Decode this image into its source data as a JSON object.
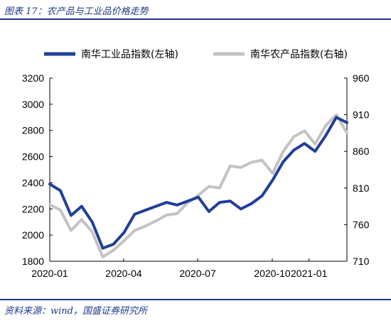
{
  "header": {
    "title": "图表 17：农产品与工业品价格走势"
  },
  "footer": {
    "source": "资料来源：wind，国盛证券研究所"
  },
  "colors": {
    "industrial": "#1f3f99",
    "agricultural": "#c3c3c3",
    "accent": "#1d3a8a"
  },
  "chart_data": {
    "type": "line",
    "title": "",
    "xlabel": "",
    "ylabel": "",
    "legend_position": "top",
    "grid": false,
    "x_ticks": [
      "2020-01",
      "2020-04",
      "2020-07",
      "2020-10",
      "2021-01"
    ],
    "ylim_left": [
      1800,
      3200
    ],
    "ylim_right": [
      710,
      960
    ],
    "y_ticks_left": [
      "1800",
      "2000",
      "2200",
      "2400",
      "2600",
      "2800",
      "3000",
      "3200"
    ],
    "y_ticks_right": [
      "710",
      "760",
      "810",
      "860",
      "910",
      "960"
    ],
    "x": [
      "2020-01",
      "2020-01",
      "2020-02",
      "2020-02",
      "2020-03",
      "2020-03",
      "2020-04",
      "2020-04",
      "2020-05",
      "2020-05",
      "2020-06",
      "2020-06",
      "2020-07",
      "2020-07",
      "2020-08",
      "2020-08",
      "2020-09",
      "2020-09",
      "2020-10",
      "2020-10",
      "2020-11",
      "2020-11",
      "2020-12",
      "2020-12",
      "2021-01",
      "2021-01",
      "2021-02",
      "2021-02",
      "2021-03"
    ],
    "series": [
      {
        "name": "南华工业品指数(左轴)",
        "axis": "left",
        "values": [
          2390,
          2340,
          2150,
          2220,
          2100,
          1900,
          1930,
          2020,
          2160,
          2190,
          2220,
          2250,
          2230,
          2260,
          2290,
          2180,
          2250,
          2260,
          2200,
          2240,
          2300,
          2420,
          2560,
          2650,
          2700,
          2640,
          2760,
          2900,
          2860
        ]
      },
      {
        "name": "南华农产品指数(右轴)",
        "axis": "right",
        "values": [
          787,
          780,
          752,
          767,
          750,
          716,
          725,
          738,
          752,
          758,
          765,
          773,
          775,
          790,
          800,
          812,
          810,
          840,
          838,
          845,
          848,
          830,
          860,
          880,
          888,
          870,
          895,
          910,
          885
        ]
      }
    ]
  }
}
